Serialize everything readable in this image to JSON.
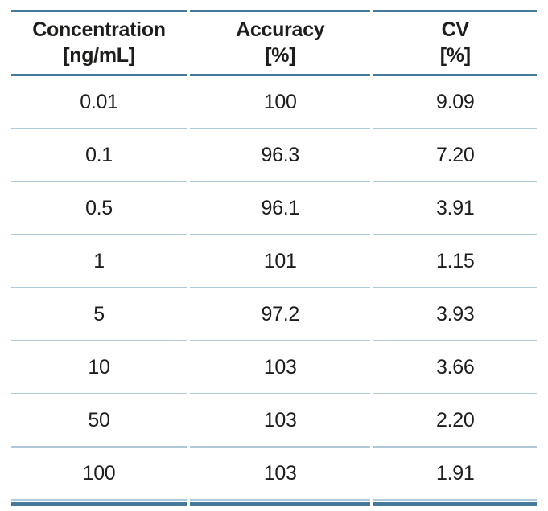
{
  "table": {
    "columns": [
      {
        "label": "Concentration",
        "unit": "[ng/mL]"
      },
      {
        "label": "Accuracy",
        "unit": "[%]"
      },
      {
        "label": "CV",
        "unit": "[%]"
      }
    ],
    "rows": [
      [
        "0.01",
        "100",
        "9.09"
      ],
      [
        "0.1",
        "96.3",
        "7.20"
      ],
      [
        "0.5",
        "96.1",
        "3.91"
      ],
      [
        "1",
        "101",
        "1.15"
      ],
      [
        "5",
        "97.2",
        "3.93"
      ],
      [
        "10",
        "103",
        "3.66"
      ],
      [
        "50",
        "103",
        "2.20"
      ],
      [
        "100",
        "103",
        "1.91"
      ]
    ]
  },
  "chart_data": {
    "type": "table",
    "title": "",
    "columns": [
      "Concentration [ng/mL]",
      "Accuracy [%]",
      "CV [%]"
    ],
    "rows": [
      [
        0.01,
        100,
        9.09
      ],
      [
        0.1,
        96.3,
        7.2
      ],
      [
        0.5,
        96.1,
        3.91
      ],
      [
        1,
        101,
        1.15
      ],
      [
        5,
        97.2,
        3.93
      ],
      [
        10,
        103,
        3.66
      ],
      [
        50,
        103,
        2.2
      ],
      [
        100,
        103,
        1.91
      ]
    ]
  },
  "colors": {
    "rule_dark": "#44799b",
    "rule_light": "#aec9d9",
    "text": "#1d1d1b",
    "background": "#ffffff"
  }
}
